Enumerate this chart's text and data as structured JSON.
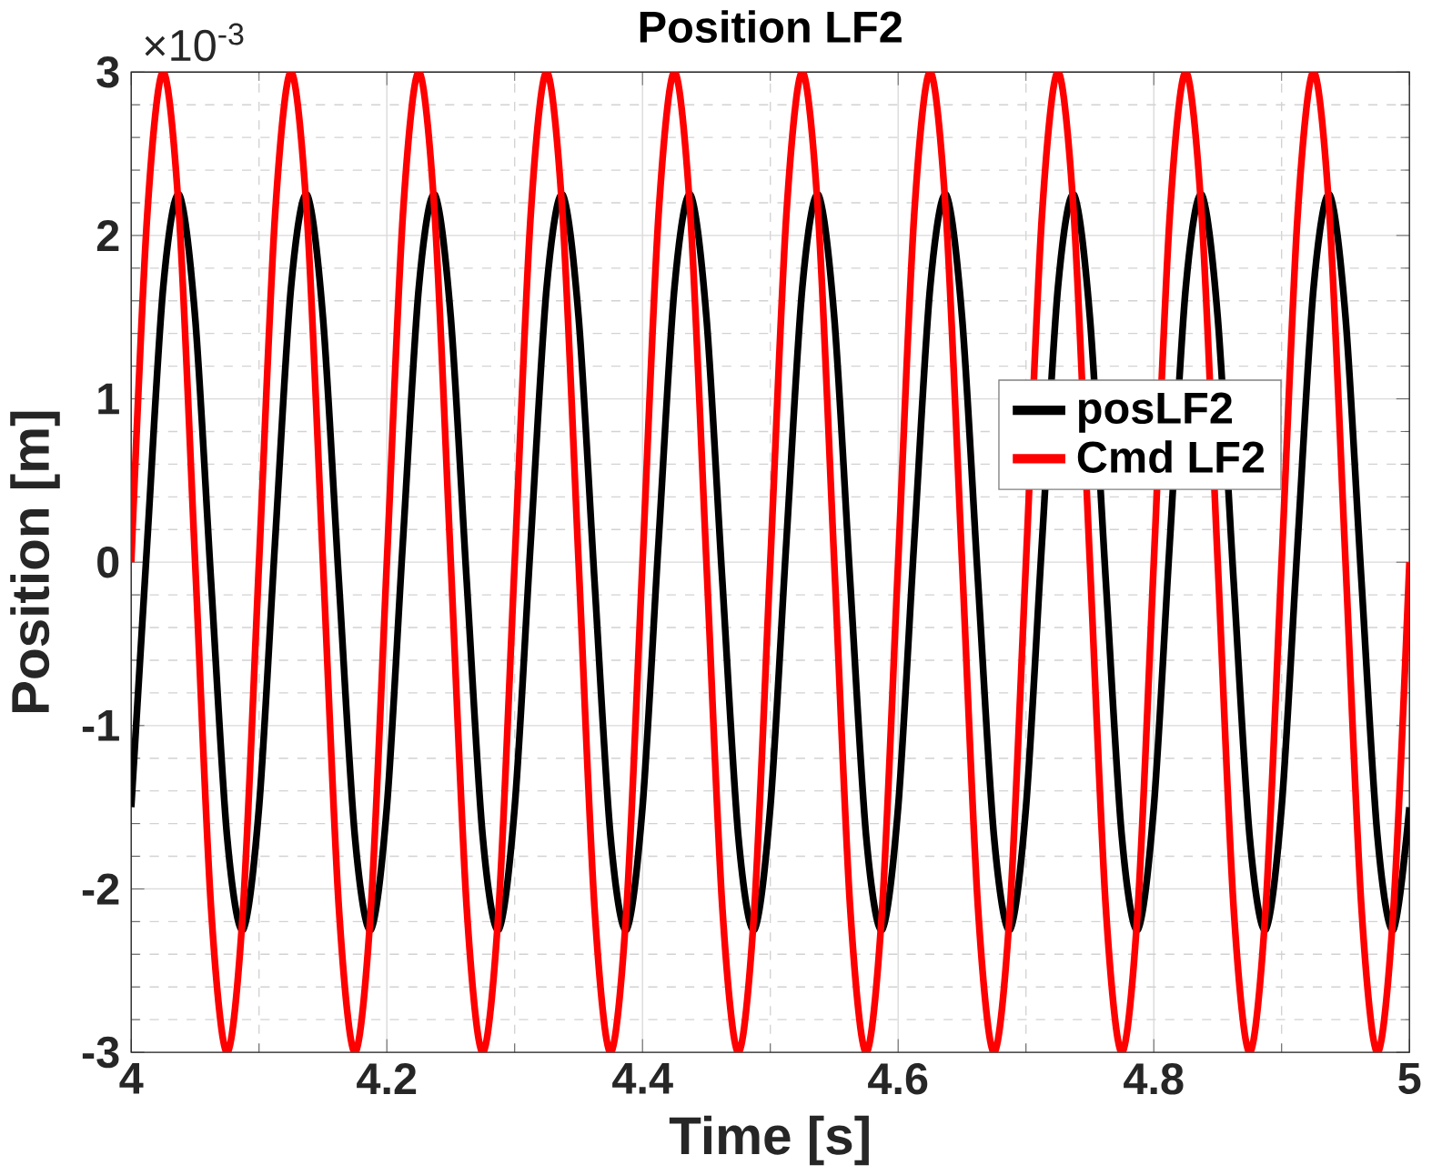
{
  "chart_data": {
    "type": "line",
    "title": "Position LF2",
    "xlabel": "Time [s]",
    "ylabel": "Position [m]",
    "annotations": [
      "×10$^{-3}$"
    ],
    "x": [
      4,
      4.0125,
      4.025,
      4.0375,
      4.05,
      4.0625,
      4.075,
      4.0875,
      4.1,
      4.1125,
      4.125,
      4.1375,
      4.15,
      4.1625,
      4.175,
      4.1875,
      4.2,
      4.2125,
      4.225,
      4.2375,
      4.25,
      4.2625,
      4.275,
      4.2875,
      4.3,
      4.3125,
      4.325,
      4.3375,
      4.35,
      4.3625,
      4.375,
      4.3875,
      4.4,
      4.4125,
      4.425,
      4.4375,
      4.45,
      4.4625,
      4.475,
      4.4875,
      4.5,
      4.5125,
      4.525,
      4.5375,
      4.55,
      4.5625,
      4.575,
      4.5875,
      4.6,
      4.6125,
      4.625,
      4.6375,
      4.65,
      4.6625,
      4.675,
      4.6875,
      4.7,
      4.7125,
      4.725,
      4.7375,
      4.75,
      4.7625,
      4.775,
      4.7875,
      4.8,
      4.8125,
      4.825,
      4.8375,
      4.85,
      4.8625,
      4.875,
      4.8875,
      4.9,
      4.9125,
      4.925,
      4.9375,
      4.95,
      4.9625,
      4.975,
      4.9875,
      5
    ],
    "series": [
      {
        "name": "posLF2",
        "color": "#000000",
        "values": [
          -1.5,
          0.12,
          1.68,
          2.25,
          1.5,
          -0.12,
          -1.68,
          -2.25,
          -1.5,
          0.12,
          1.68,
          2.25,
          1.5,
          -0.12,
          -1.68,
          -2.25,
          -1.5,
          0.12,
          1.68,
          2.25,
          1.5,
          -0.12,
          -1.68,
          -2.25,
          -1.5,
          0.12,
          1.68,
          2.25,
          1.5,
          -0.12,
          -1.68,
          -2.25,
          -1.5,
          0.12,
          1.68,
          2.25,
          1.5,
          -0.12,
          -1.68,
          -2.25,
          -1.5,
          0.12,
          1.68,
          2.25,
          1.5,
          -0.12,
          -1.68,
          -2.25,
          -1.5,
          0.12,
          1.68,
          2.25,
          1.5,
          -0.12,
          -1.68,
          -2.25,
          -1.5,
          0.12,
          1.68,
          2.25,
          1.5,
          -0.12,
          -1.68,
          -2.25,
          -1.5,
          0.12,
          1.68,
          2.25,
          1.5,
          -0.12,
          -1.68,
          -2.25,
          -1.5,
          0.12,
          1.68,
          2.25,
          1.5,
          -0.12,
          -1.68,
          -2.25,
          -1.5
        ]
      },
      {
        "name": "Cmd LF2",
        "color": "#ff0000",
        "values": [
          0,
          2.12,
          3,
          2.12,
          0,
          -2.12,
          -3,
          -2.12,
          0,
          2.12,
          3,
          2.12,
          0,
          -2.12,
          -3,
          -2.12,
          0,
          2.12,
          3,
          2.12,
          0,
          -2.12,
          -3,
          -2.12,
          0,
          2.12,
          3,
          2.12,
          0,
          -2.12,
          -3,
          -2.12,
          0,
          2.12,
          3,
          2.12,
          0,
          -2.12,
          -3,
          -2.12,
          0,
          2.12,
          3,
          2.12,
          0,
          -2.12,
          -3,
          -2.12,
          0,
          2.12,
          3,
          2.12,
          0,
          -2.12,
          -3,
          -2.12,
          0,
          2.12,
          3,
          2.12,
          0,
          -2.12,
          -3,
          -2.12,
          0,
          2.12,
          3,
          2.12,
          0,
          -2.12,
          -3,
          -2.12,
          0,
          2.12,
          3,
          2.12,
          0,
          -2.12,
          -3,
          -2.12,
          0
        ]
      }
    ],
    "xlim": [
      4,
      5
    ],
    "ylim": [
      -3,
      3
    ],
    "xticks": [
      4,
      4.2,
      4.4,
      4.6,
      4.8,
      5
    ],
    "yticks": [
      -3,
      -2,
      -1,
      0,
      1,
      2,
      3
    ],
    "grid": true,
    "legend": "right"
  }
}
